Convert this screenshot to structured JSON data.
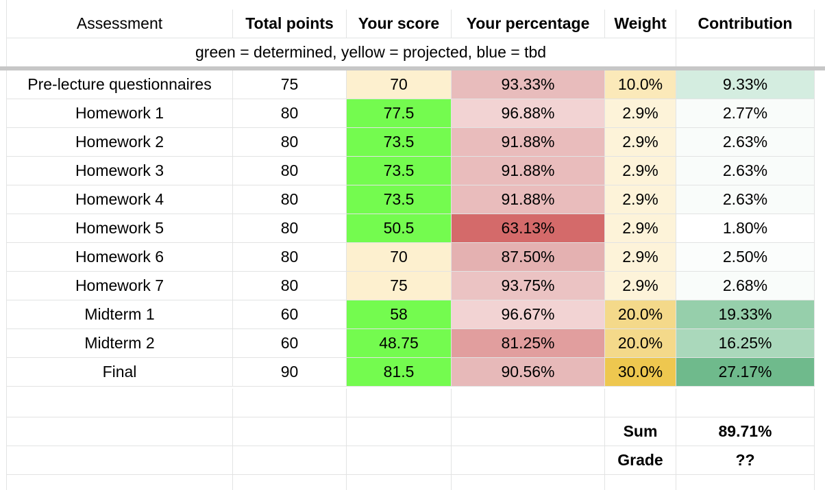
{
  "headers": [
    "Assessment",
    "Total points",
    "Your score",
    "Your percentage",
    "Weight",
    "Contribution"
  ],
  "legend": "green = determined, yellow = projected, blue = tbd",
  "colors": {
    "determined_score_green": "#74fb4f",
    "projected_score_yellow": "#fdf0cf",
    "gridline": "#e2e3e3",
    "freeze_bar": "#c7c7c7"
  },
  "rows": [
    {
      "assessment": "Pre-lecture questionnaires",
      "total": "75",
      "score": "70",
      "percentage": "93.33%",
      "weight": "10.0%",
      "contribution": "9.33%",
      "score_bg": "#fdf0cf",
      "pct_bg": "#e8bcbc",
      "weight_bg": "#fbe9b9",
      "contrib_bg": "#d4ede0"
    },
    {
      "assessment": "Homework 1",
      "total": "80",
      "score": "77.5",
      "percentage": "96.88%",
      "weight": "2.9%",
      "contribution": "2.77%",
      "score_bg": "#74fb4f",
      "pct_bg": "#f2d3d3",
      "weight_bg": "#fdf3d9",
      "contrib_bg": "#f9fcfa"
    },
    {
      "assessment": "Homework 2",
      "total": "80",
      "score": "73.5",
      "percentage": "91.88%",
      "weight": "2.9%",
      "contribution": "2.63%",
      "score_bg": "#74fb4f",
      "pct_bg": "#e9bcbc",
      "weight_bg": "#fdf3d9",
      "contrib_bg": "#f9fcfa"
    },
    {
      "assessment": "Homework 3",
      "total": "80",
      "score": "73.5",
      "percentage": "91.88%",
      "weight": "2.9%",
      "contribution": "2.63%",
      "score_bg": "#74fb4f",
      "pct_bg": "#e9bcbc",
      "weight_bg": "#fdf3d9",
      "contrib_bg": "#f9fcfa"
    },
    {
      "assessment": "Homework 4",
      "total": "80",
      "score": "73.5",
      "percentage": "91.88%",
      "weight": "2.9%",
      "contribution": "2.63%",
      "score_bg": "#74fb4f",
      "pct_bg": "#e9bcbc",
      "weight_bg": "#fdf3d9",
      "contrib_bg": "#f9fcfa"
    },
    {
      "assessment": "Homework 5",
      "total": "80",
      "score": "50.5",
      "percentage": "63.13%",
      "weight": "2.9%",
      "contribution": "1.80%",
      "score_bg": "#74fb4f",
      "pct_bg": "#d46a6a",
      "weight_bg": "#fdf3d9",
      "contrib_bg": "#ffffff"
    },
    {
      "assessment": "Homework 6",
      "total": "80",
      "score": "70",
      "percentage": "87.50%",
      "weight": "2.9%",
      "contribution": "2.50%",
      "score_bg": "#fdf0cf",
      "pct_bg": "#e4b1b1",
      "weight_bg": "#fdf3d9",
      "contrib_bg": "#fbfdfc"
    },
    {
      "assessment": "Homework 7",
      "total": "80",
      "score": "75",
      "percentage": "93.75%",
      "weight": "2.9%",
      "contribution": "2.68%",
      "score_bg": "#fdf0cf",
      "pct_bg": "#ebc3c3",
      "weight_bg": "#fdf3d9",
      "contrib_bg": "#f9fcfa"
    },
    {
      "assessment": "Midterm 1",
      "total": "60",
      "score": "58",
      "percentage": "96.67%",
      "weight": "20.0%",
      "contribution": "19.33%",
      "score_bg": "#74fb4f",
      "pct_bg": "#f2d3d3",
      "weight_bg": "#f4d98a",
      "contrib_bg": "#96cfab"
    },
    {
      "assessment": "Midterm 2",
      "total": "60",
      "score": "48.75",
      "percentage": "81.25%",
      "weight": "20.0%",
      "contribution": "16.25%",
      "score_bg": "#74fb4f",
      "pct_bg": "#e19e9e",
      "weight_bg": "#f4d98a",
      "contrib_bg": "#aad8bb"
    },
    {
      "assessment": "Final",
      "total": "90",
      "score": "81.5",
      "percentage": "90.56%",
      "weight": "30.0%",
      "contribution": "27.17%",
      "score_bg": "#74fb4f",
      "pct_bg": "#e7b9b9",
      "weight_bg": "#eec74f",
      "contrib_bg": "#6fba8c"
    }
  ],
  "summary": {
    "sum_label": "Sum",
    "sum_value": "89.71%",
    "grade_label": "Grade",
    "grade_value": "??"
  }
}
